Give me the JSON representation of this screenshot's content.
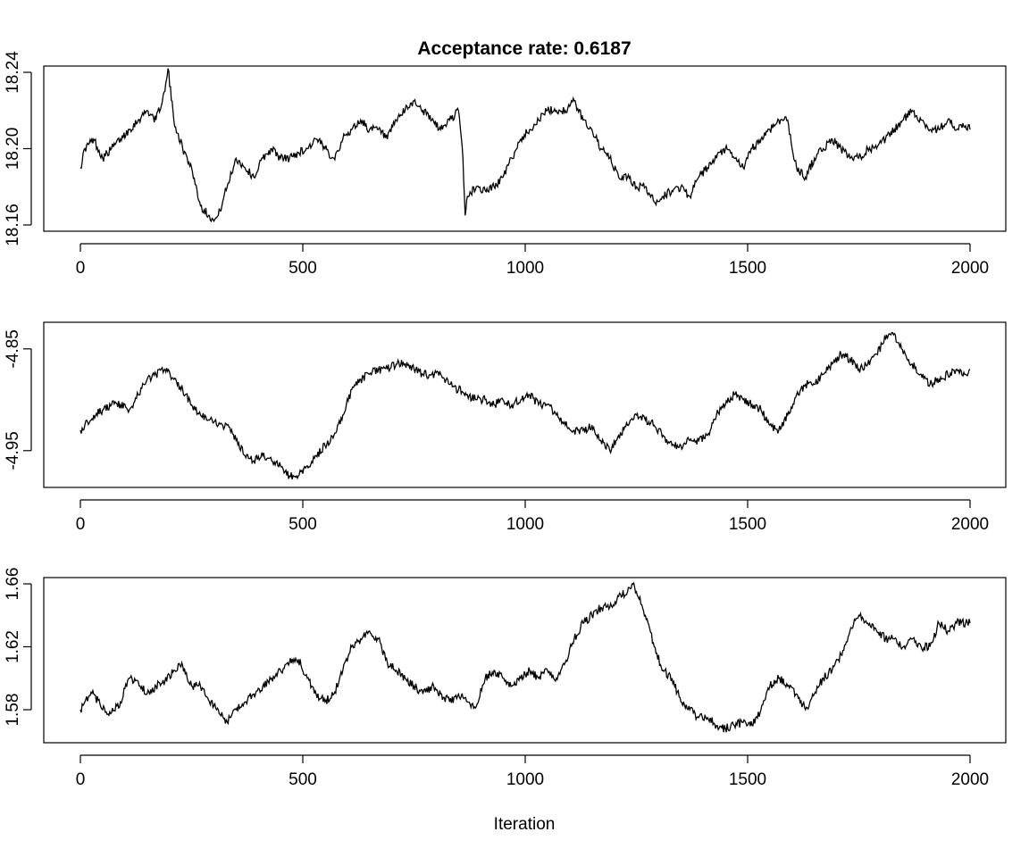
{
  "title": "Acceptance rate: 0.6187",
  "xlabel": "Iteration",
  "chart_data": [
    {
      "type": "line",
      "title": "Acceptance rate: 0.6187",
      "xlim": [
        0,
        2000
      ],
      "ylim": [
        18.16,
        18.24
      ],
      "xticks": [
        0,
        500,
        1000,
        1500,
        2000
      ],
      "yticks": [
        18.16,
        18.2,
        18.24
      ],
      "ytick_labels": [
        "18.16",
        "18.20",
        "18.24"
      ],
      "series": [
        {
          "x": [
            0,
            10,
            30,
            50,
            70,
            90,
            110,
            130,
            150,
            170,
            190,
            197,
            210,
            230,
            250,
            270,
            290,
            300,
            310,
            330,
            350,
            370,
            390,
            410,
            430,
            450,
            470,
            490,
            510,
            530,
            550,
            570,
            590,
            610,
            630,
            650,
            670,
            690,
            710,
            730,
            750,
            770,
            790,
            810,
            830,
            850,
            860,
            865,
            870,
            890,
            910,
            930,
            950,
            970,
            990,
            1010,
            1030,
            1050,
            1070,
            1090,
            1110,
            1130,
            1150,
            1170,
            1190,
            1210,
            1230,
            1250,
            1270,
            1290,
            1310,
            1330,
            1350,
            1370,
            1390,
            1410,
            1430,
            1450,
            1470,
            1490,
            1510,
            1530,
            1550,
            1570,
            1590,
            1600,
            1610,
            1630,
            1650,
            1670,
            1690,
            1710,
            1730,
            1750,
            1770,
            1790,
            1810,
            1830,
            1850,
            1870,
            1890,
            1910,
            1930,
            1950,
            1970,
            1990,
            2000
          ],
          "y": [
            18.19,
            18.2,
            18.205,
            18.195,
            18.2,
            18.205,
            18.21,
            18.215,
            18.22,
            18.215,
            18.23,
            18.242,
            18.215,
            18.2,
            18.19,
            18.17,
            18.165,
            18.162,
            18.165,
            18.18,
            18.195,
            18.19,
            18.185,
            18.195,
            18.2,
            18.195,
            18.195,
            18.198,
            18.2,
            18.205,
            18.2,
            18.195,
            18.205,
            18.21,
            18.215,
            18.21,
            18.21,
            18.205,
            18.215,
            18.22,
            18.225,
            18.22,
            18.215,
            18.21,
            18.215,
            18.22,
            18.195,
            18.165,
            18.175,
            18.18,
            18.178,
            18.18,
            18.185,
            18.195,
            18.205,
            18.21,
            18.215,
            18.22,
            18.22,
            18.22,
            18.225,
            18.215,
            18.21,
            18.2,
            18.195,
            18.185,
            18.185,
            18.18,
            18.18,
            18.172,
            18.175,
            18.178,
            18.18,
            18.175,
            18.185,
            18.19,
            18.195,
            18.2,
            18.195,
            18.19,
            18.2,
            18.205,
            18.21,
            18.215,
            18.215,
            18.2,
            18.19,
            18.185,
            18.195,
            18.2,
            18.205,
            18.2,
            18.195,
            18.195,
            18.2,
            18.2,
            18.205,
            18.21,
            18.215,
            18.22,
            18.215,
            18.21,
            18.21,
            18.215,
            18.21,
            18.212,
            18.21
          ]
        }
      ]
    },
    {
      "type": "line",
      "xlim": [
        0,
        2000
      ],
      "ylim": [
        -4.98,
        -4.83
      ],
      "xticks": [
        0,
        500,
        1000,
        1500,
        2000
      ],
      "yticks": [
        -4.95,
        -4.85
      ],
      "ytick_labels": [
        "-4.95",
        "-4.85"
      ],
      "series": [
        {
          "x": [
            0,
            10,
            30,
            50,
            70,
            90,
            110,
            130,
            150,
            170,
            190,
            210,
            230,
            250,
            270,
            290,
            310,
            330,
            350,
            370,
            390,
            410,
            430,
            450,
            470,
            490,
            510,
            530,
            550,
            570,
            590,
            610,
            630,
            650,
            670,
            690,
            710,
            730,
            750,
            770,
            790,
            810,
            830,
            850,
            870,
            890,
            910,
            930,
            950,
            970,
            990,
            1010,
            1030,
            1050,
            1070,
            1090,
            1110,
            1130,
            1150,
            1170,
            1190,
            1210,
            1230,
            1250,
            1270,
            1290,
            1310,
            1330,
            1350,
            1370,
            1390,
            1410,
            1430,
            1450,
            1470,
            1490,
            1510,
            1530,
            1550,
            1570,
            1590,
            1610,
            1630,
            1650,
            1670,
            1690,
            1710,
            1730,
            1750,
            1770,
            1790,
            1810,
            1830,
            1850,
            1870,
            1890,
            1910,
            1930,
            1950,
            1970,
            1990,
            2000
          ],
          "y": [
            -4.93,
            -4.925,
            -4.915,
            -4.91,
            -4.905,
            -4.905,
            -4.91,
            -4.895,
            -4.88,
            -4.875,
            -4.87,
            -4.88,
            -4.89,
            -4.905,
            -4.915,
            -4.92,
            -4.925,
            -4.925,
            -4.94,
            -4.955,
            -4.96,
            -4.955,
            -4.96,
            -4.965,
            -4.975,
            -4.975,
            -4.965,
            -4.955,
            -4.945,
            -4.935,
            -4.915,
            -4.89,
            -4.88,
            -4.875,
            -4.87,
            -4.87,
            -4.865,
            -4.865,
            -4.87,
            -4.875,
            -4.875,
            -4.875,
            -4.885,
            -4.89,
            -4.895,
            -4.9,
            -4.9,
            -4.905,
            -4.9,
            -4.905,
            -4.9,
            -4.895,
            -4.905,
            -4.905,
            -4.915,
            -4.925,
            -4.93,
            -4.93,
            -4.925,
            -4.94,
            -4.95,
            -4.935,
            -4.925,
            -4.915,
            -4.92,
            -4.925,
            -4.935,
            -4.945,
            -4.945,
            -4.94,
            -4.94,
            -4.935,
            -4.915,
            -4.905,
            -4.895,
            -4.9,
            -4.905,
            -4.91,
            -4.925,
            -4.93,
            -4.915,
            -4.895,
            -4.885,
            -4.885,
            -4.875,
            -4.865,
            -4.855,
            -4.86,
            -4.87,
            -4.865,
            -4.855,
            -4.84,
            -4.835,
            -4.855,
            -4.865,
            -4.875,
            -4.885,
            -4.88,
            -4.875,
            -4.87,
            -4.875,
            -4.87
          ]
        }
      ]
    },
    {
      "type": "line",
      "xlabel": "Iteration",
      "xlim": [
        0,
        2000
      ],
      "ylim": [
        1.563,
        1.66
      ],
      "xticks": [
        0,
        500,
        1000,
        1500,
        2000
      ],
      "yticks": [
        1.58,
        1.62,
        1.66
      ],
      "ytick_labels": [
        "1.58",
        "1.62",
        "1.66"
      ],
      "series": [
        {
          "x": [
            0,
            10,
            30,
            50,
            70,
            90,
            110,
            130,
            150,
            170,
            190,
            210,
            230,
            250,
            270,
            290,
            310,
            330,
            350,
            370,
            390,
            410,
            430,
            450,
            470,
            490,
            510,
            530,
            550,
            570,
            590,
            610,
            630,
            650,
            670,
            690,
            710,
            730,
            750,
            770,
            790,
            810,
            830,
            850,
            870,
            890,
            910,
            930,
            950,
            970,
            990,
            1010,
            1030,
            1050,
            1070,
            1090,
            1110,
            1130,
            1150,
            1170,
            1190,
            1210,
            1230,
            1240,
            1250,
            1270,
            1290,
            1310,
            1330,
            1350,
            1370,
            1390,
            1410,
            1430,
            1450,
            1470,
            1490,
            1510,
            1530,
            1550,
            1570,
            1590,
            1610,
            1630,
            1650,
            1670,
            1690,
            1710,
            1730,
            1750,
            1770,
            1790,
            1810,
            1830,
            1850,
            1870,
            1890,
            1910,
            1930,
            1950,
            1970,
            1990,
            2000
          ],
          "y": [
            1.58,
            1.585,
            1.59,
            1.58,
            1.578,
            1.585,
            1.6,
            1.598,
            1.59,
            1.595,
            1.598,
            1.605,
            1.608,
            1.595,
            1.595,
            1.585,
            1.58,
            1.572,
            1.58,
            1.585,
            1.59,
            1.595,
            1.6,
            1.605,
            1.61,
            1.612,
            1.6,
            1.59,
            1.585,
            1.59,
            1.605,
            1.62,
            1.625,
            1.63,
            1.625,
            1.61,
            1.605,
            1.6,
            1.595,
            1.59,
            1.595,
            1.59,
            1.585,
            1.59,
            1.585,
            1.582,
            1.6,
            1.605,
            1.6,
            1.595,
            1.6,
            1.605,
            1.6,
            1.605,
            1.6,
            1.61,
            1.625,
            1.635,
            1.64,
            1.645,
            1.645,
            1.652,
            1.655,
            1.66,
            1.655,
            1.64,
            1.62,
            1.605,
            1.6,
            1.585,
            1.58,
            1.575,
            1.575,
            1.57,
            1.568,
            1.57,
            1.572,
            1.57,
            1.58,
            1.595,
            1.6,
            1.595,
            1.59,
            1.58,
            1.59,
            1.6,
            1.605,
            1.615,
            1.63,
            1.64,
            1.635,
            1.63,
            1.625,
            1.625,
            1.62,
            1.625,
            1.62,
            1.62,
            1.635,
            1.63,
            1.635,
            1.635,
            1.635
          ]
        }
      ]
    }
  ]
}
